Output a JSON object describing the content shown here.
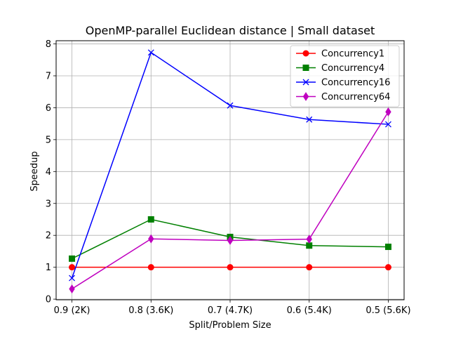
{
  "chart_data": {
    "type": "line",
    "title": "OpenMP-parallel Euclidean distance | Small dataset",
    "xlabel": "Split/Problem Size",
    "ylabel": "Speedup",
    "categories": [
      "0.9 (2K)",
      "0.8 (3.6K)",
      "0.7 (4.7K)",
      "0.6 (5.4K)",
      "0.5 (5.6K)"
    ],
    "ylim": [
      -0.02,
      8.1
    ],
    "yticks": [
      0,
      1,
      2,
      3,
      4,
      5,
      6,
      7,
      8
    ],
    "grid": true,
    "legend_position": "top-right",
    "series": [
      {
        "name": "Concurrency1",
        "color": "#ff0000",
        "marker": "circle",
        "values": [
          1.0,
          1.0,
          1.0,
          1.0,
          1.0
        ]
      },
      {
        "name": "Concurrency4",
        "color": "#008000",
        "marker": "square",
        "values": [
          1.27,
          2.5,
          1.95,
          1.68,
          1.64
        ]
      },
      {
        "name": "Concurrency16",
        "color": "#0000ff",
        "marker": "x",
        "values": [
          0.66,
          7.73,
          6.07,
          5.63,
          5.48
        ]
      },
      {
        "name": "Concurrency64",
        "color": "#bf00bf",
        "marker": "diamond",
        "values": [
          0.32,
          1.89,
          1.84,
          1.88,
          5.87
        ]
      }
    ]
  }
}
